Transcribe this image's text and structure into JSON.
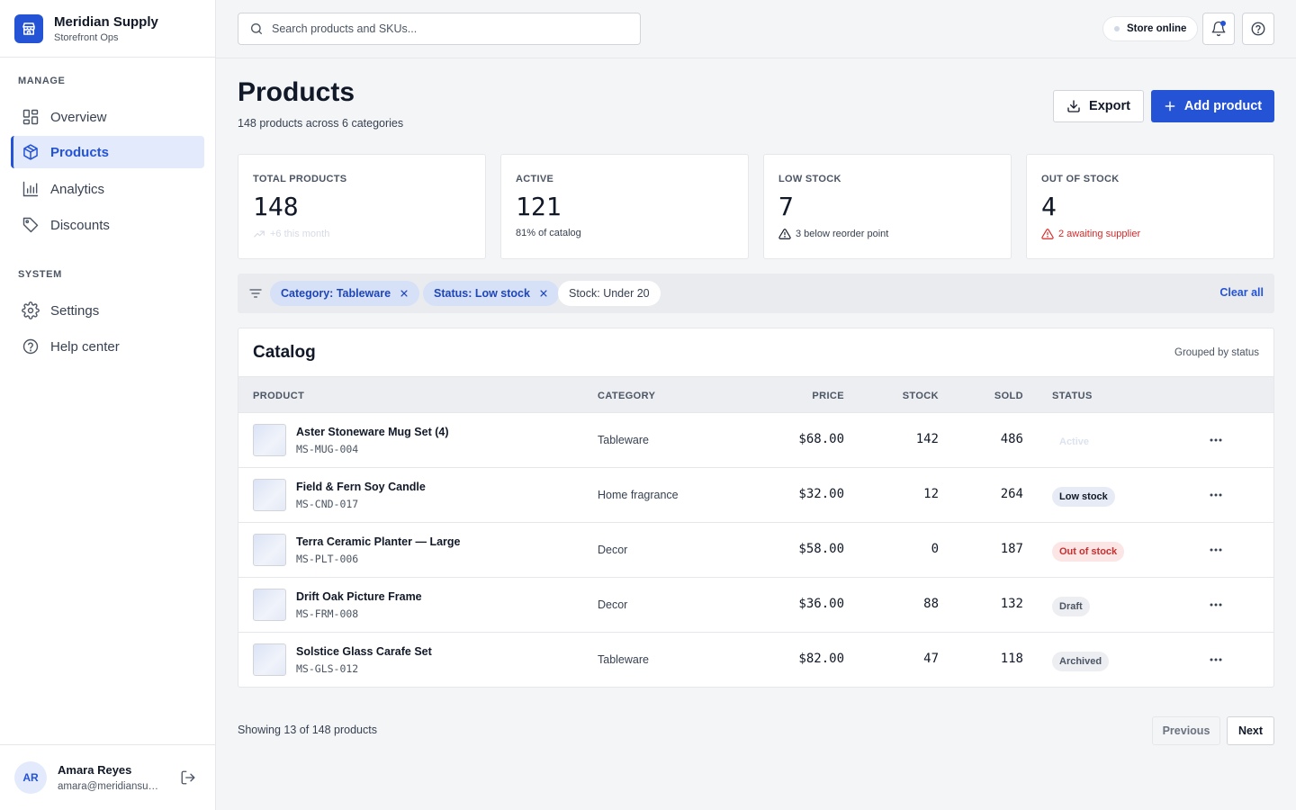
{
  "brand": {
    "name": "Meridian Supply",
    "subtitle": "Storefront Ops"
  },
  "sidebar": {
    "sections": [
      {
        "title": "MANAGE",
        "items": [
          {
            "label": "Overview",
            "icon": "grid-icon"
          },
          {
            "label": "Products",
            "icon": "box-icon",
            "active": true
          },
          {
            "label": "Analytics",
            "icon": "bar-chart-icon"
          },
          {
            "label": "Discounts",
            "icon": "tag-icon"
          }
        ]
      },
      {
        "title": "SYSTEM",
        "items": [
          {
            "label": "Settings",
            "icon": "gear-icon"
          },
          {
            "label": "Help center",
            "icon": "help-circle-icon"
          }
        ]
      }
    ]
  },
  "user": {
    "initials": "AR",
    "name": "Amara Reyes",
    "email": "amara@meridiansupply.com"
  },
  "topbar": {
    "search_placeholder": "Search products and SKUs...",
    "store_status": "Store online"
  },
  "header": {
    "title": "Products",
    "subtitle": "148 products across 6 categories",
    "export_label": "Export",
    "add_label": "Add product"
  },
  "stats": [
    {
      "label": "TOTAL PRODUCTS",
      "value": "148",
      "note": "+6 this month",
      "tone": "faint",
      "icon": "trend-up-icon"
    },
    {
      "label": "ACTIVE",
      "value": "121",
      "note": "81% of catalog",
      "tone": "normal",
      "icon": ""
    },
    {
      "label": "LOW STOCK",
      "value": "7",
      "note": "3 below reorder point",
      "tone": "normal",
      "icon": "warning-icon"
    },
    {
      "label": "OUT OF STOCK",
      "value": "4",
      "note": "2 awaiting supplier",
      "tone": "red",
      "icon": "warning-icon"
    }
  ],
  "filters": {
    "chips": [
      {
        "label": "Category: Tableware",
        "active": true
      },
      {
        "label": "Status: Low stock",
        "active": true
      },
      {
        "label": "Stock: Under 20",
        "active": false
      }
    ],
    "clear_label": "Clear all"
  },
  "catalog": {
    "title": "Catalog",
    "meta": "Grouped by status",
    "columns": [
      "PRODUCT",
      "CATEGORY",
      "PRICE",
      "STOCK",
      "SOLD",
      "STATUS"
    ],
    "rows": [
      {
        "name": "Aster Stoneware Mug Set (4)",
        "sku": "MS-MUG-004",
        "category": "Tableware",
        "price": "$68.00",
        "stock": "142",
        "sold": "486",
        "status": "Active"
      },
      {
        "name": "Field & Fern Soy Candle",
        "sku": "MS-CND-017",
        "category": "Home fragrance",
        "price": "$32.00",
        "stock": "12",
        "sold": "264",
        "status": "Low stock"
      },
      {
        "name": "Terra Ceramic Planter — Large",
        "sku": "MS-PLT-006",
        "category": "Decor",
        "price": "$58.00",
        "stock": "0",
        "sold": "187",
        "status": "Out of stock"
      },
      {
        "name": "Drift Oak Picture Frame",
        "sku": "MS-FRM-008",
        "category": "Decor",
        "price": "$36.00",
        "stock": "88",
        "sold": "132",
        "status": "Draft"
      },
      {
        "name": "Solstice Glass Carafe Set",
        "sku": "MS-GLS-012",
        "category": "Tableware",
        "price": "$82.00",
        "stock": "47",
        "sold": "118",
        "status": "Archived"
      }
    ]
  },
  "pagination": {
    "summary": "Showing 13 of 148 products",
    "previous": "Previous",
    "next": "Next"
  },
  "colors": {
    "accent": "#2453d6",
    "danger": "#dc2626",
    "border": "#e5e7eb",
    "page_bg": "#f4f5f7"
  }
}
